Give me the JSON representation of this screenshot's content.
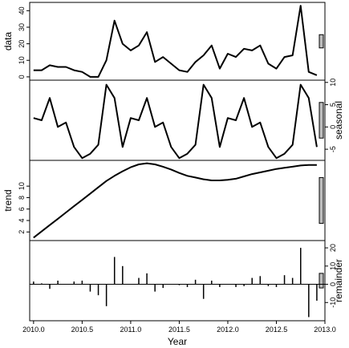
{
  "chart_data": {
    "type": "line",
    "title": "",
    "xlabel": "Year",
    "x_ticks": [
      "2010.0",
      "2010.5",
      "2011.0",
      "2011.5",
      "2012.0",
      "2012.5",
      "2013.0"
    ],
    "x": [
      2010.0,
      2010.0833,
      2010.1667,
      2010.25,
      2010.3333,
      2010.4167,
      2010.5,
      2010.5833,
      2010.6667,
      2010.75,
      2010.8333,
      2010.9167,
      2011.0,
      2011.0833,
      2011.1667,
      2011.25,
      2011.3333,
      2011.4167,
      2011.5,
      2011.5833,
      2011.6667,
      2011.75,
      2011.8333,
      2011.9167,
      2012.0,
      2012.0833,
      2012.1667,
      2012.25,
      2012.3333,
      2012.4167,
      2012.5,
      2012.5833,
      2012.6667,
      2012.75,
      2012.8333,
      2012.9167
    ],
    "panels": [
      {
        "ylabel": "data",
        "kind": "line",
        "yaxis": "left",
        "ylim": [
          -2,
          45
        ],
        "ticks": [
          0,
          10,
          20,
          30,
          40
        ],
        "values": [
          4,
          4,
          7,
          6,
          6,
          4,
          3,
          0,
          0,
          10,
          34,
          20,
          16,
          19,
          27,
          9,
          12,
          8,
          4,
          3,
          9,
          13,
          19,
          5,
          14,
          12,
          17,
          16,
          19,
          8,
          5,
          12,
          13,
          43,
          3,
          1
        ]
      },
      {
        "ylabel": "seasonal",
        "kind": "line",
        "yaxis": "right",
        "ylim": [
          -7.5,
          10.5
        ],
        "ticks": [
          -5,
          0,
          5,
          10
        ],
        "values": [
          2,
          1.5,
          6.5,
          0,
          1,
          -4.5,
          -7,
          -6,
          -4,
          9.5,
          6.5,
          -4.5,
          2,
          1.5,
          6.5,
          0,
          1,
          -4.5,
          -7,
          -6,
          -4,
          9.5,
          6.5,
          -4.5,
          2,
          1.5,
          6.5,
          0,
          1,
          -4.5,
          -7,
          -6,
          -4,
          9.5,
          6.5,
          -4.5
        ]
      },
      {
        "ylabel": "trend",
        "kind": "line",
        "yaxis": "left",
        "ylim": [
          0.5,
          14.5
        ],
        "ticks": [
          2,
          4,
          6,
          8,
          10
        ],
        "values": [
          1,
          2.1,
          3.2,
          4.3,
          5.4,
          6.5,
          7.6,
          8.7,
          9.8,
          10.9,
          11.8,
          12.6,
          13.3,
          13.8,
          14,
          13.8,
          13.4,
          12.9,
          12.3,
          11.8,
          11.5,
          11.2,
          11,
          11,
          11.1,
          11.3,
          11.7,
          12.1,
          12.4,
          12.7,
          13,
          13.2,
          13.4,
          13.6,
          13.7,
          13.7
        ]
      },
      {
        "ylabel": "remainder",
        "kind": "bars",
        "yaxis": "right",
        "ylim": [
          -20,
          24
        ],
        "ticks": [
          -10,
          0,
          10,
          20
        ],
        "values": [
          1.5,
          0.5,
          -2.5,
          2,
          0,
          1.5,
          2,
          -4,
          -6,
          -12,
          15,
          10,
          0,
          3.5,
          6,
          -4,
          -2,
          0,
          -0.5,
          -1.5,
          2.5,
          -8,
          2,
          -1.5,
          0,
          -1.5,
          -1,
          3.5,
          4.5,
          -1,
          -1.5,
          5,
          3.5,
          20,
          -18,
          -9
        ]
      }
    ]
  }
}
